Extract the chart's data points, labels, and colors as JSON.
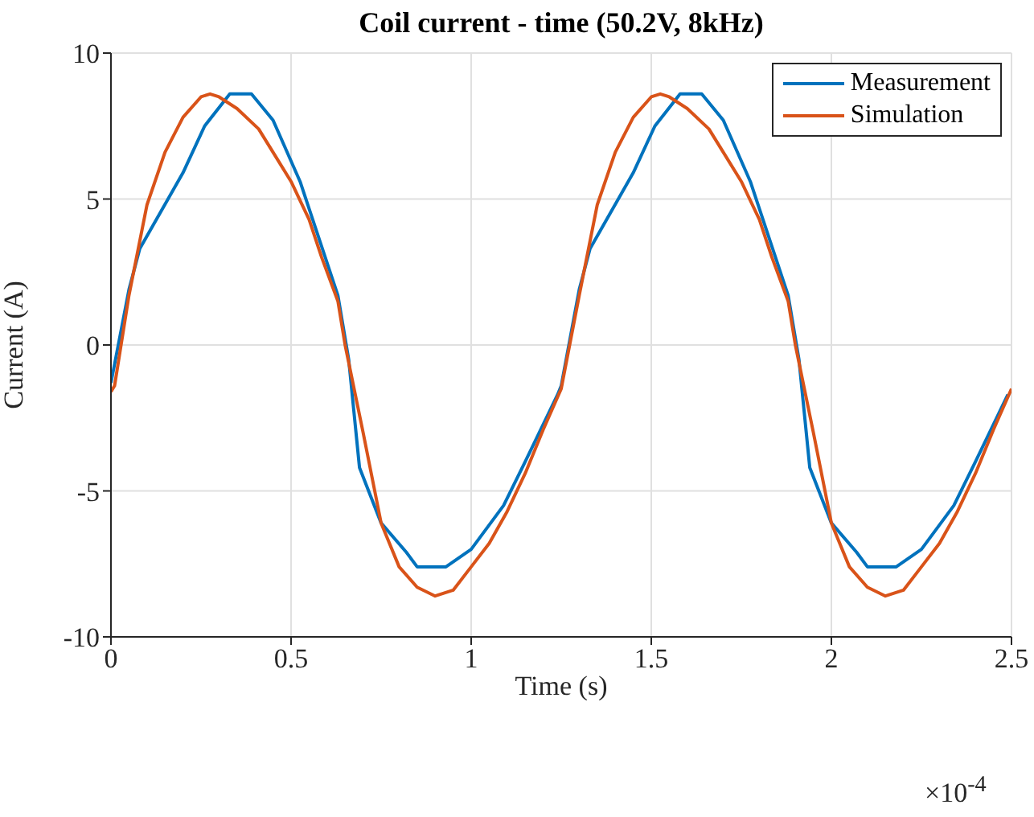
{
  "chart_data": {
    "type": "line",
    "title": "Coil current - time (50.2V, 8kHz)",
    "xlabel": "Time (s)",
    "ylabel": "Current (A)",
    "annotations": [
      "×10$^{-4}$"
    ],
    "xlim": [
      0,
      2.5
    ],
    "xticks": [
      0,
      0.5,
      1,
      1.5,
      2,
      2.5
    ],
    "ylim": [
      -10,
      10
    ],
    "yticks": [
      -10,
      -5,
      0,
      5,
      10
    ],
    "grid": true,
    "legend": "top right",
    "marker": "none",
    "line_style": "solid",
    "series": [
      {
        "name": "Measurement",
        "color": "#0072bd",
        "x": [
          0,
          0.05,
          0.08,
          0.14,
          0.2,
          0.26,
          0.33,
          0.39,
          0.45,
          0.525,
          0.63,
          0.66,
          0.69,
          0.75,
          0.82,
          0.85,
          0.93,
          1.0,
          1.09,
          1.15,
          1.24,
          1.25,
          1.3,
          1.33,
          1.39,
          1.45,
          1.51,
          1.58,
          1.64,
          1.7,
          1.775,
          1.88,
          1.91,
          1.94,
          2.0,
          2.07,
          2.1,
          2.18,
          2.25,
          2.34,
          2.4,
          2.49
        ],
        "values": [
          -1.3,
          1.9,
          3.3,
          4.6,
          5.9,
          7.5,
          8.6,
          8.6,
          7.7,
          5.6,
          1.7,
          -0.5,
          -4.2,
          -6.1,
          -7.1,
          -7.6,
          -7.6,
          -7.0,
          -5.5,
          -4.0,
          -1.7,
          -1.4,
          1.9,
          3.3,
          4.6,
          5.9,
          7.5,
          8.6,
          8.6,
          7.7,
          5.6,
          1.7,
          -0.5,
          -4.2,
          -6.1,
          -7.1,
          -7.6,
          -7.6,
          -7.0,
          -5.5,
          -4.0,
          -1.7
        ]
      },
      {
        "name": "Simulation",
        "color": "#d95319",
        "x": [
          0,
          0.01,
          0.05,
          0.1,
          0.15,
          0.2,
          0.25,
          0.275,
          0.3,
          0.35,
          0.41,
          0.45,
          0.5,
          0.55,
          0.585,
          0.63,
          0.65,
          0.7,
          0.75,
          0.8,
          0.85,
          0.9,
          0.95,
          1.0,
          1.05,
          1.1,
          1.15,
          1.2,
          1.25,
          1.3,
          1.35,
          1.4,
          1.45,
          1.5,
          1.525,
          1.55,
          1.6,
          1.66,
          1.7,
          1.75,
          1.8,
          1.835,
          1.88,
          1.9,
          1.95,
          2.0,
          2.05,
          2.1,
          2.15,
          2.2,
          2.25,
          2.3,
          2.35,
          2.4,
          2.45,
          2.5
        ],
        "values": [
          -1.6,
          -1.4,
          1.7,
          4.8,
          6.6,
          7.8,
          8.5,
          8.6,
          8.5,
          8.1,
          7.4,
          6.6,
          5.6,
          4.3,
          3.0,
          1.5,
          0.0,
          -3.0,
          -6.1,
          -7.6,
          -8.3,
          -8.6,
          -8.4,
          -7.6,
          -6.8,
          -5.7,
          -4.4,
          -2.9,
          -1.5,
          1.7,
          4.8,
          6.6,
          7.8,
          8.5,
          8.6,
          8.5,
          8.1,
          7.4,
          6.6,
          5.6,
          4.3,
          3.0,
          1.5,
          0.0,
          -3.0,
          -6.1,
          -7.6,
          -8.3,
          -8.6,
          -8.4,
          -7.6,
          -6.8,
          -5.7,
          -4.4,
          -2.9,
          -1.5
        ]
      }
    ]
  }
}
